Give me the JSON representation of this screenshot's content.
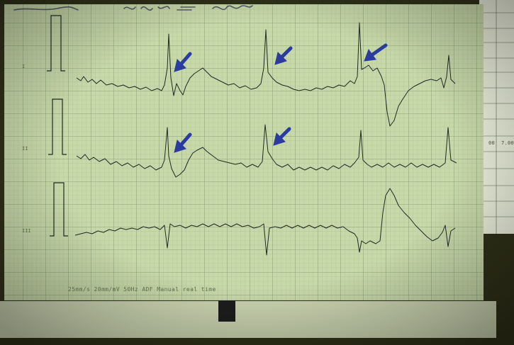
{
  "paper": {
    "footer_text": "25mm/s  20mm/mV  50Hz ADF  Manual real time",
    "lead_labels": [
      "I",
      "II",
      "III"
    ]
  },
  "side_sheet": {
    "label_left": "00",
    "label_right": "7.00"
  },
  "colors": {
    "background": "#2f3018",
    "ecg_paper": "#c7d8a9",
    "grid_line": "#7e9a6d",
    "trace": "#1f2a24",
    "arrow": "#2c3c9e",
    "marker": "#1d1d1d"
  }
}
